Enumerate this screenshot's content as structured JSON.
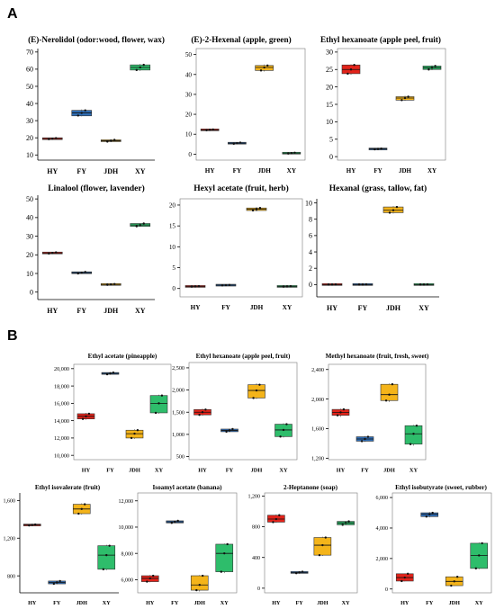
{
  "panels": {
    "A": "A",
    "B": "B"
  },
  "colors": {
    "HY": "#e2231a",
    "FY": "#2f6db5",
    "JDH": "#f4b41a",
    "XY": "#2ebd6b"
  },
  "chart_data": [
    {
      "type": "box",
      "title": "(E)-Nerolidol (odor:wood, flower, wax)",
      "categories": [
        "HY",
        "FY",
        "JDH",
        "XY"
      ],
      "yticks": [
        "10",
        "20",
        "30",
        "40",
        "50",
        "60",
        "70"
      ],
      "ylim": [
        7,
        72
      ],
      "series": [
        {
          "category": "HY",
          "min": 19.0,
          "q1": 19.2,
          "median": 19.5,
          "q3": 19.8,
          "max": 20.0,
          "points": [
            19.2,
            19.5,
            19.8
          ]
        },
        {
          "category": "FY",
          "min": 32.5,
          "q1": 32.8,
          "median": 34.5,
          "q3": 36.0,
          "max": 36.5,
          "points": [
            33.0,
            34.5,
            36.0
          ]
        },
        {
          "category": "JDH",
          "min": 17.5,
          "q1": 17.8,
          "median": 18.3,
          "q3": 18.8,
          "max": 19.0,
          "points": [
            17.8,
            18.3,
            18.8
          ]
        },
        {
          "category": "XY",
          "min": 59.0,
          "q1": 59.5,
          "median": 61.0,
          "q3": 62.5,
          "max": 63.0,
          "points": [
            59.5,
            61.0,
            62.5
          ]
        }
      ]
    },
    {
      "type": "box",
      "title": "(E)-2-Hexenal (apple, green)",
      "categories": [
        "HY",
        "FY",
        "JDH",
        "XY"
      ],
      "yticks": [
        "0",
        "10",
        "20",
        "30",
        "40",
        "50"
      ],
      "ylim": [
        -3,
        53
      ],
      "series": [
        {
          "category": "HY",
          "min": 11.8,
          "q1": 12.0,
          "median": 12.2,
          "q3": 12.4,
          "max": 12.6,
          "points": [
            12.0,
            12.2,
            12.4
          ]
        },
        {
          "category": "FY",
          "min": 5.0,
          "q1": 5.2,
          "median": 5.5,
          "q3": 5.8,
          "max": 6.0,
          "points": [
            5.2,
            5.5,
            5.8
          ]
        },
        {
          "category": "JDH",
          "min": 41.5,
          "q1": 42.0,
          "median": 43.5,
          "q3": 44.5,
          "max": 45.0,
          "points": [
            42.0,
            43.5,
            44.5
          ]
        },
        {
          "category": "XY",
          "min": 0.2,
          "q1": 0.3,
          "median": 0.5,
          "q3": 0.7,
          "max": 0.8,
          "points": [
            0.3,
            0.5,
            0.7
          ]
        }
      ]
    },
    {
      "type": "box",
      "title": "Ethyl hexanoate (apple peel, fruit)",
      "categories": [
        "HY",
        "FY",
        "JDH",
        "XY"
      ],
      "yticks": [
        "0",
        "5",
        "10",
        "15",
        "20",
        "25",
        "30"
      ],
      "ylim": [
        -1,
        31
      ],
      "series": [
        {
          "category": "HY",
          "min": 23.5,
          "q1": 23.8,
          "median": 25.0,
          "q3": 26.3,
          "max": 26.5,
          "points": [
            23.8,
            25.0,
            26.3
          ]
        },
        {
          "category": "FY",
          "min": 2.0,
          "q1": 2.1,
          "median": 2.2,
          "q3": 2.3,
          "max": 2.4,
          "points": [
            2.1,
            2.2,
            2.3
          ]
        },
        {
          "category": "JDH",
          "min": 16.0,
          "q1": 16.2,
          "median": 16.8,
          "q3": 17.2,
          "max": 17.5,
          "points": [
            16.2,
            16.8,
            17.2
          ]
        },
        {
          "category": "XY",
          "min": 24.8,
          "q1": 25.0,
          "median": 25.5,
          "q3": 26.0,
          "max": 26.2,
          "points": [
            25.0,
            25.5,
            26.0
          ]
        }
      ]
    },
    {
      "type": "box",
      "title": "Linalool (flower, lavender)",
      "categories": [
        "HY",
        "FY",
        "JDH",
        "XY"
      ],
      "yticks": [
        "0",
        "10",
        "20",
        "30",
        "40",
        "50"
      ],
      "ylim": [
        -4,
        52
      ],
      "series": [
        {
          "category": "HY",
          "min": 20.5,
          "q1": 20.7,
          "median": 21.0,
          "q3": 21.3,
          "max": 21.5,
          "points": [
            20.7,
            21.0,
            21.3
          ]
        },
        {
          "category": "FY",
          "min": 9.8,
          "q1": 10.0,
          "median": 10.4,
          "q3": 10.8,
          "max": 11.0,
          "points": [
            10.0,
            10.4,
            10.8
          ]
        },
        {
          "category": "JDH",
          "min": 3.8,
          "q1": 3.9,
          "median": 4.1,
          "q3": 4.3,
          "max": 4.4,
          "points": [
            3.9,
            4.1,
            4.3
          ]
        },
        {
          "category": "XY",
          "min": 35.0,
          "q1": 35.3,
          "median": 36.0,
          "q3": 36.8,
          "max": 37.0,
          "points": [
            35.3,
            36.0,
            36.8
          ]
        }
      ]
    },
    {
      "type": "box",
      "title": "Hexyl acetate (fruit, herb)",
      "categories": [
        "HY",
        "FY",
        "JDH",
        "XY"
      ],
      "yticks": [
        "0",
        "5",
        "10",
        "15",
        "20"
      ],
      "ylim": [
        -2,
        21.5
      ],
      "series": [
        {
          "category": "HY",
          "min": 0.4,
          "q1": 0.45,
          "median": 0.5,
          "q3": 0.55,
          "max": 0.6,
          "points": [
            0.45,
            0.5,
            0.55
          ]
        },
        {
          "category": "FY",
          "min": 0.7,
          "q1": 0.75,
          "median": 0.8,
          "q3": 0.85,
          "max": 0.9,
          "points": [
            0.75,
            0.8,
            0.85
          ]
        },
        {
          "category": "JDH",
          "min": 18.5,
          "q1": 18.7,
          "median": 19.0,
          "q3": 19.3,
          "max": 19.5,
          "points": [
            18.7,
            19.0,
            19.3
          ]
        },
        {
          "category": "XY",
          "min": 0.4,
          "q1": 0.45,
          "median": 0.5,
          "q3": 0.55,
          "max": 0.6,
          "points": [
            0.45,
            0.5,
            0.55
          ]
        }
      ]
    },
    {
      "type": "box",
      "title": "Hexanal (grass, tallow, fat)",
      "categories": [
        "HY",
        "FY",
        "JDH",
        "XY"
      ],
      "yticks": [
        "0",
        "2",
        "4",
        "6",
        "8",
        "10"
      ],
      "ylim": [
        -1.5,
        10.5
      ],
      "series": [
        {
          "category": "HY",
          "min": 0.0,
          "q1": 0.0,
          "median": 0.0,
          "q3": 0.02,
          "max": 0.03,
          "points": [
            0.0,
            0.0,
            0.02
          ]
        },
        {
          "category": "FY",
          "min": 0.0,
          "q1": 0.0,
          "median": 0.0,
          "q3": 0.02,
          "max": 0.03,
          "points": [
            0.0,
            0.0,
            0.02
          ]
        },
        {
          "category": "JDH",
          "min": 8.7,
          "q1": 8.8,
          "median": 9.1,
          "q3": 9.5,
          "max": 9.6,
          "points": [
            8.8,
            9.1,
            9.5
          ]
        },
        {
          "category": "XY",
          "min": 0.0,
          "q1": 0.0,
          "median": 0.0,
          "q3": 0.02,
          "max": 0.03,
          "points": [
            0.0,
            0.0,
            0.02
          ]
        }
      ]
    },
    {
      "type": "box",
      "title": "Ethyl acetate (pineapple)",
      "categories": [
        "HY",
        "FY",
        "JDH",
        "XY"
      ],
      "yticks": [
        "10,000",
        "12,000",
        "14,000",
        "16,000",
        "18,000",
        "20,000"
      ],
      "ylim": [
        9500,
        20500
      ],
      "series": [
        {
          "category": "HY",
          "min": 14100,
          "q1": 14200,
          "median": 14500,
          "q3": 14800,
          "max": 14900,
          "points": [
            14200,
            14500,
            14800
          ]
        },
        {
          "category": "FY",
          "min": 19300,
          "q1": 19350,
          "median": 19450,
          "q3": 19550,
          "max": 19600,
          "points": [
            19350,
            19450,
            19550
          ]
        },
        {
          "category": "JDH",
          "min": 11900,
          "q1": 12000,
          "median": 12500,
          "q3": 12900,
          "max": 13000,
          "points": [
            12000,
            12500,
            12900
          ]
        },
        {
          "category": "XY",
          "min": 14800,
          "q1": 14900,
          "median": 16000,
          "q3": 16900,
          "max": 17000,
          "points": [
            14900,
            16000,
            16900
          ]
        }
      ]
    },
    {
      "type": "box",
      "title": "Ethyl hexanoate (apple peel, fruit)",
      "categories": [
        "HY",
        "FY",
        "JDH",
        "XY"
      ],
      "yticks": [
        "500",
        "1,000",
        "1,500",
        "2,000",
        "2,500"
      ],
      "ylim": [
        430,
        2620
      ],
      "series": [
        {
          "category": "HY",
          "min": 1420,
          "q1": 1440,
          "median": 1500,
          "q3": 1560,
          "max": 1580,
          "points": [
            1440,
            1500,
            1560
          ]
        },
        {
          "category": "FY",
          "min": 1050,
          "q1": 1060,
          "median": 1090,
          "q3": 1120,
          "max": 1130,
          "points": [
            1060,
            1090,
            1120
          ]
        },
        {
          "category": "JDH",
          "min": 1800,
          "q1": 1820,
          "median": 1990,
          "q3": 2120,
          "max": 2150,
          "points": [
            1820,
            1990,
            2120
          ]
        },
        {
          "category": "XY",
          "min": 930,
          "q1": 950,
          "median": 1100,
          "q3": 1230,
          "max": 1250,
          "points": [
            950,
            1100,
            1230
          ]
        }
      ]
    },
    {
      "type": "box",
      "title": "Methyl hexanoate (fruit, fresh, sweet)",
      "categories": [
        "HY",
        "FY",
        "JDH",
        "XY"
      ],
      "yticks": [
        "1,200",
        "1,600",
        "2,000",
        "2,400"
      ],
      "ylim": [
        1180,
        2470
      ],
      "series": [
        {
          "category": "HY",
          "min": 1760,
          "q1": 1780,
          "median": 1820,
          "q3": 1860,
          "max": 1870,
          "points": [
            1780,
            1820,
            1860
          ]
        },
        {
          "category": "FY",
          "min": 1420,
          "q1": 1430,
          "median": 1460,
          "q3": 1490,
          "max": 1500,
          "points": [
            1430,
            1460,
            1490
          ]
        },
        {
          "category": "JDH",
          "min": 1960,
          "q1": 1980,
          "median": 2060,
          "q3": 2200,
          "max": 2210,
          "points": [
            1980,
            2060,
            2200
          ]
        },
        {
          "category": "XY",
          "min": 1370,
          "q1": 1390,
          "median": 1530,
          "q3": 1640,
          "max": 1650,
          "points": [
            1390,
            1530,
            1640
          ]
        }
      ]
    },
    {
      "type": "box",
      "title": "Ethyl isovalerate (fruit)",
      "categories": [
        "HY",
        "FY",
        "JDH",
        "XY"
      ],
      "yticks": [
        "800",
        "1,200",
        "1,600"
      ],
      "ylim": [
        620,
        1680
      ],
      "series": [
        {
          "category": "HY",
          "min": 1330,
          "q1": 1335,
          "median": 1340,
          "q3": 1345,
          "max": 1350,
          "points": [
            1335,
            1340,
            1345
          ]
        },
        {
          "category": "FY",
          "min": 710,
          "q1": 715,
          "median": 730,
          "q3": 745,
          "max": 750,
          "points": [
            715,
            730,
            745
          ]
        },
        {
          "category": "JDH",
          "min": 1450,
          "q1": 1460,
          "median": 1510,
          "q3": 1560,
          "max": 1570,
          "points": [
            1460,
            1510,
            1560
          ]
        },
        {
          "category": "XY",
          "min": 860,
          "q1": 870,
          "median": 1020,
          "q3": 1120,
          "max": 1130,
          "points": [
            870,
            1020,
            1120
          ]
        }
      ]
    },
    {
      "type": "box",
      "title": "Isoamyl acetate (banana)",
      "categories": [
        "HY",
        "FY",
        "JDH",
        "XY"
      ],
      "yticks": [
        "6,000",
        "8,000",
        "10,000",
        "12,000"
      ],
      "ylim": [
        5000,
        12600
      ],
      "series": [
        {
          "category": "HY",
          "min": 5800,
          "q1": 5850,
          "median": 6100,
          "q3": 6300,
          "max": 6350,
          "points": [
            5850,
            6100,
            6300
          ]
        },
        {
          "category": "FY",
          "min": 10300,
          "q1": 10320,
          "median": 10400,
          "q3": 10480,
          "max": 10500,
          "points": [
            10320,
            10400,
            10480
          ]
        },
        {
          "category": "JDH",
          "min": 5100,
          "q1": 5200,
          "median": 5600,
          "q3": 6300,
          "max": 6350,
          "points": [
            5200,
            5600,
            6300
          ]
        },
        {
          "category": "XY",
          "min": 6500,
          "q1": 6600,
          "median": 8000,
          "q3": 8700,
          "max": 8750,
          "points": [
            6600,
            8000,
            8700
          ]
        }
      ]
    },
    {
      "type": "box",
      "title": "2-Heptanone (soap)",
      "categories": [
        "HY",
        "FY",
        "JDH",
        "XY"
      ],
      "yticks": [
        "0",
        "400",
        "800",
        "1,200"
      ],
      "ylim": [
        -60,
        1240
      ],
      "series": [
        {
          "category": "HY",
          "min": 850,
          "q1": 860,
          "median": 900,
          "q3": 950,
          "max": 960,
          "points": [
            860,
            900,
            950
          ]
        },
        {
          "category": "FY",
          "min": 190,
          "q1": 195,
          "median": 205,
          "q3": 215,
          "max": 220,
          "points": [
            195,
            205,
            215
          ]
        },
        {
          "category": "JDH",
          "min": 420,
          "q1": 430,
          "median": 560,
          "q3": 660,
          "max": 670,
          "points": [
            430,
            560,
            660
          ]
        },
        {
          "category": "XY",
          "min": 820,
          "q1": 825,
          "median": 850,
          "q3": 870,
          "max": 875,
          "points": [
            825,
            850,
            870
          ]
        }
      ]
    },
    {
      "type": "box",
      "title": "Ethyl isobutyrate (sweet, rubber)",
      "categories": [
        "HY",
        "FY",
        "JDH",
        "XY"
      ],
      "yticks": [
        "0",
        "2,000",
        "4,000",
        "6,000"
      ],
      "ylim": [
        -250,
        6300
      ],
      "series": [
        {
          "category": "HY",
          "min": 500,
          "q1": 520,
          "median": 750,
          "q3": 1000,
          "max": 1020,
          "points": [
            520,
            750,
            1000
          ]
        },
        {
          "category": "FY",
          "min": 4700,
          "q1": 4750,
          "median": 4900,
          "q3": 5000,
          "max": 5050,
          "points": [
            4750,
            4900,
            5000
          ]
        },
        {
          "category": "JDH",
          "min": 200,
          "q1": 220,
          "median": 500,
          "q3": 800,
          "max": 820,
          "points": [
            220,
            500,
            800
          ]
        },
        {
          "category": "XY",
          "min": 1300,
          "q1": 1350,
          "median": 2200,
          "q3": 3000,
          "max": 3050,
          "points": [
            1350,
            2200,
            3000
          ]
        }
      ]
    }
  ]
}
